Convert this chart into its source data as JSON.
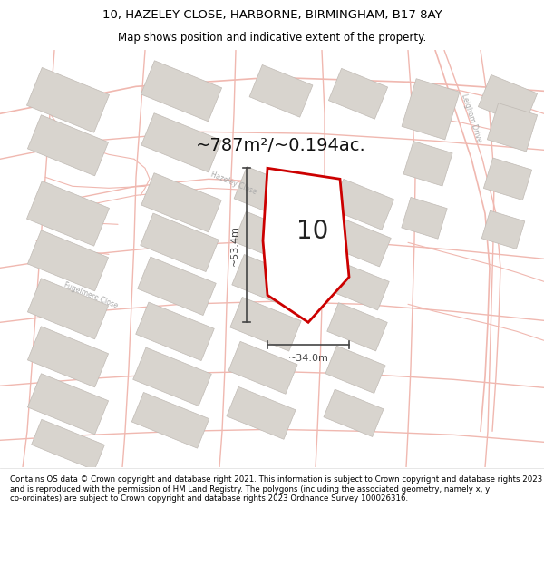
{
  "title_line1": "10, HAZELEY CLOSE, HARBORNE, BIRMINGHAM, B17 8AY",
  "title_line2": "Map shows position and indicative extent of the property.",
  "footer_text": "Contains OS data © Crown copyright and database right 2021. This information is subject to Crown copyright and database rights 2023 and is reproduced with the permission of HM Land Registry. The polygons (including the associated geometry, namely x, y co-ordinates) are subject to Crown copyright and database rights 2023 Ordnance Survey 100026316.",
  "area_label": "~787m²/~0.194ac.",
  "width_label": "~34.0m",
  "height_label": "~53.4m",
  "property_number": "10",
  "map_bg": "#ffffff",
  "road_color": "#f0b8b0",
  "building_color": "#d8d4ce",
  "building_edge": "#c0bab4",
  "property_fill": "#ffffff",
  "property_edge": "#cc0000",
  "dim_color": "#444444",
  "label_color": "#888888",
  "road_lw": 1.0,
  "title_fontsize": 9.5,
  "subtitle_fontsize": 8.5,
  "area_fontsize": 14,
  "dim_fontsize": 8,
  "number_fontsize": 20,
  "footer_fontsize": 6.2
}
